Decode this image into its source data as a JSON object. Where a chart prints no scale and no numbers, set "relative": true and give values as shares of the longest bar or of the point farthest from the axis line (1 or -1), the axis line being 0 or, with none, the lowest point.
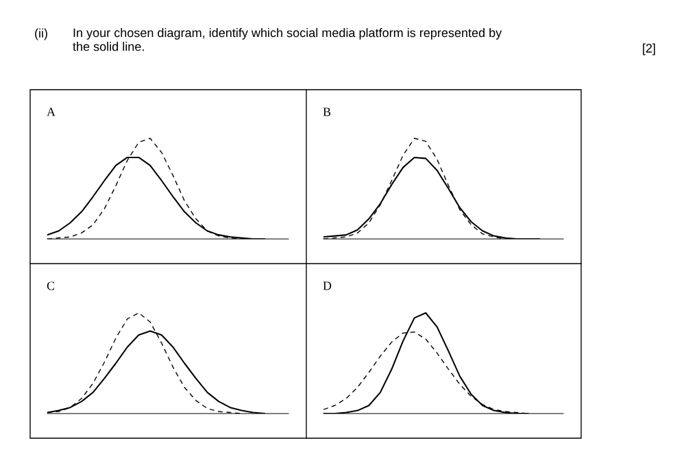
{
  "chart_data": [
    {
      "type": "line",
      "title": "A",
      "relative": true,
      "annotations": [
        "(ii)",
        "In your chosen diagram, identify which social media platform is represented by\nthe solid line.",
        "[2]"
      ],
      "categories": [
        null,
        null,
        null,
        null,
        null,
        null,
        null,
        null,
        null,
        null,
        null,
        null,
        null,
        null,
        null,
        null,
        null,
        null,
        null,
        null,
        null,
        null
      ],
      "series": [
        {
          "color": "#000000",
          "line_style": "solid",
          "values": [
            0.04,
            0.08,
            0.16,
            0.27,
            0.42,
            0.58,
            0.73,
            0.81,
            0.81,
            0.73,
            0.58,
            0.42,
            0.27,
            0.16,
            0.08,
            0.04,
            0.02,
            0.01,
            0.0,
            0.0,
            null,
            null
          ]
        },
        {
          "color": "#000000",
          "line_style": "dashed",
          "values": [
            0.0,
            0.01,
            0.02,
            0.06,
            0.14,
            0.3,
            0.53,
            0.78,
            0.96,
            1.0,
            0.86,
            0.63,
            0.38,
            0.2,
            0.08,
            0.03,
            0.01,
            0.0,
            0.0,
            null,
            null,
            null
          ]
        }
      ]
    },
    {
      "type": "line",
      "title": "B",
      "relative": true,
      "categories": [
        null,
        null,
        null,
        null,
        null,
        null,
        null,
        null,
        null,
        null,
        null,
        null,
        null,
        null,
        null,
        null,
        null,
        null,
        null,
        null,
        null,
        null
      ],
      "series": [
        {
          "color": "#000000",
          "line_style": "solid",
          "values": [
            0.02,
            0.03,
            0.04,
            0.09,
            0.2,
            0.35,
            0.54,
            0.71,
            0.81,
            0.8,
            0.68,
            0.5,
            0.31,
            0.17,
            0.08,
            0.03,
            0.01,
            0.0,
            0.0,
            0.0,
            null,
            null
          ]
        },
        {
          "color": "#000000",
          "line_style": "dashed",
          "values": [
            0.0,
            0.01,
            0.02,
            0.06,
            0.16,
            0.34,
            0.58,
            0.83,
            1.0,
            0.97,
            0.79,
            0.53,
            0.29,
            0.14,
            0.05,
            0.02,
            0.0,
            0.0,
            0.0,
            null,
            null,
            null
          ]
        }
      ]
    },
    {
      "type": "line",
      "title": "C",
      "relative": true,
      "categories": [
        null,
        null,
        null,
        null,
        null,
        null,
        null,
        null,
        null,
        null,
        null,
        null,
        null,
        null,
        null,
        null,
        null,
        null,
        null,
        null,
        null,
        null
      ],
      "series": [
        {
          "color": "#000000",
          "line_style": "solid",
          "values": [
            0.01,
            0.03,
            0.06,
            0.12,
            0.21,
            0.35,
            0.5,
            0.66,
            0.78,
            0.82,
            0.78,
            0.66,
            0.5,
            0.35,
            0.21,
            0.12,
            0.06,
            0.03,
            0.01,
            0.0,
            null,
            null
          ]
        },
        {
          "color": "#000000",
          "line_style": "dashed",
          "values": [
            0.01,
            0.02,
            0.06,
            0.15,
            0.3,
            0.51,
            0.75,
            0.94,
            1.0,
            0.91,
            0.7,
            0.46,
            0.26,
            0.13,
            0.05,
            0.02,
            0.01,
            0.0,
            null,
            null,
            null,
            null
          ]
        }
      ]
    },
    {
      "type": "line",
      "title": "D",
      "relative": true,
      "categories": [
        null,
        null,
        null,
        null,
        null,
        null,
        null,
        null,
        null,
        null,
        null,
        null,
        null,
        null,
        null,
        null,
        null,
        null,
        null,
        null,
        null,
        null
      ],
      "series": [
        {
          "color": "#000000",
          "line_style": "solid",
          "values": [
            0.0,
            0.0,
            0.01,
            0.03,
            0.08,
            0.21,
            0.44,
            0.72,
            0.95,
            1.0,
            0.86,
            0.62,
            0.37,
            0.19,
            0.08,
            0.03,
            0.01,
            0.0,
            0.0,
            null,
            null,
            null
          ]
        },
        {
          "color": "#000000",
          "line_style": "dashed",
          "values": [
            0.04,
            0.08,
            0.15,
            0.26,
            0.41,
            0.57,
            0.71,
            0.8,
            0.81,
            0.74,
            0.6,
            0.44,
            0.29,
            0.17,
            0.09,
            0.04,
            0.02,
            0.01,
            0.0,
            null,
            null,
            null
          ]
        }
      ]
    }
  ]
}
